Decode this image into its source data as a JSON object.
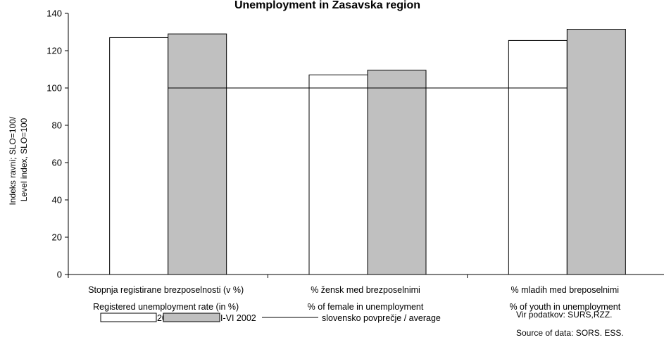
{
  "chart_data": {
    "type": "bar",
    "title": "Unemployment in Zasavska region",
    "ylabel_lines": [
      "Indeks ravni; SLO=100/",
      "Level index, SLO=100"
    ],
    "ylim": [
      0,
      140
    ],
    "yticks": [
      0,
      20,
      40,
      60,
      80,
      100,
      120,
      140
    ],
    "grid": false,
    "legend_position": "bottom",
    "categories": [
      {
        "line1": "Stopnja registirane brezposelnosti (v %)",
        "line2": "Registered unemployment rate (in %)"
      },
      {
        "line1": "% žensk med  brezposelnimi",
        "line2": "% of female in unemployment"
      },
      {
        "line1": "% mladih med breposelnimi",
        "line2": "% of youth in unemployment"
      }
    ],
    "series": [
      {
        "name": "2001",
        "values": [
          127,
          107,
          125.5
        ],
        "color": "#ffffff"
      },
      {
        "name": "I-VI 2002",
        "values": [
          129,
          109.5,
          131.5
        ],
        "color": "#c0c0c0"
      }
    ],
    "reference_line": {
      "name": "slovensko povprečje / average",
      "value": 100
    },
    "source_lines": [
      "Vir podatkov: SURS,RZZ.",
      "Source of data: SORS. ESS."
    ]
  }
}
